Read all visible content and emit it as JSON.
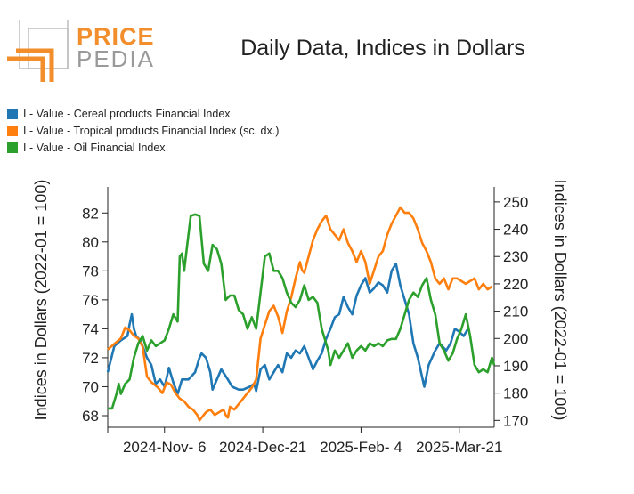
{
  "brand": {
    "line1": "PRICE",
    "line2": "PEDIA",
    "mark_color": "#f28e2b"
  },
  "chart_data": {
    "type": "line",
    "title": "Daily Data, Indices in Dollars",
    "xlabel": "",
    "ylabel": "Indices in Dollars (2022-01 = 100)",
    "y2label": "Indices in Dollars (2022-01 = 100)",
    "ylim": [
      67.2,
      83.8
    ],
    "y2lim": [
      167.5,
      255.5
    ],
    "yticks": [
      68,
      70,
      72,
      74,
      76,
      78,
      80,
      82
    ],
    "y2ticks": [
      170,
      180,
      190,
      200,
      210,
      220,
      230,
      240,
      250
    ],
    "x_tick_labels": [
      "2024-Nov- 6",
      "2024-Dec-21",
      "2025-Feb- 4",
      "2025-Mar-21"
    ],
    "x_tick_positions": [
      26,
      71,
      116,
      161
    ],
    "xlim": [
      0,
      177
    ],
    "grid": false,
    "legend": "top-left",
    "series": [
      {
        "name": "I - Value - Cereal products Financial Index",
        "axis": "left",
        "color": "#1f77b4",
        "points": [
          [
            0,
            71.0
          ],
          [
            3,
            72.8
          ],
          [
            6,
            73.2
          ],
          [
            9,
            73.5
          ],
          [
            10,
            74.3
          ],
          [
            11,
            75.0
          ],
          [
            12,
            74.0
          ],
          [
            13,
            73.5
          ],
          [
            15,
            73.2
          ],
          [
            18,
            72.0
          ],
          [
            20,
            71.5
          ],
          [
            22,
            70.2
          ],
          [
            24,
            70.5
          ],
          [
            26,
            70.0
          ],
          [
            28,
            71.3
          ],
          [
            30,
            70.3
          ],
          [
            32,
            69.5
          ],
          [
            34,
            70.5
          ],
          [
            37,
            70.5
          ],
          [
            40,
            71.0
          ],
          [
            42,
            72.0
          ],
          [
            43,
            72.3
          ],
          [
            45,
            72.0
          ],
          [
            47,
            71.0
          ],
          [
            48,
            69.8
          ],
          [
            50,
            70.5
          ],
          [
            52,
            71.2
          ],
          [
            55,
            70.5
          ],
          [
            57,
            70.0
          ],
          [
            60,
            69.8
          ],
          [
            62,
            69.8
          ],
          [
            65,
            70.0
          ],
          [
            67,
            70.2
          ],
          [
            68,
            69.7
          ],
          [
            70,
            71.2
          ],
          [
            72,
            71.5
          ],
          [
            74,
            70.5
          ],
          [
            76,
            71.0
          ],
          [
            78,
            71.5
          ],
          [
            80,
            71.0
          ],
          [
            82,
            72.3
          ],
          [
            84,
            72.0
          ],
          [
            86,
            72.5
          ],
          [
            88,
            72.3
          ],
          [
            90,
            72.8
          ],
          [
            92,
            72.0
          ],
          [
            94,
            71.2
          ],
          [
            96,
            71.8
          ],
          [
            98,
            72.3
          ],
          [
            100,
            73.3
          ],
          [
            102,
            74.0
          ],
          [
            104,
            74.8
          ],
          [
            106,
            75.0
          ],
          [
            108,
            76.2
          ],
          [
            110,
            75.5
          ],
          [
            112,
            75.0
          ],
          [
            114,
            76.3
          ],
          [
            116,
            77.0
          ],
          [
            118,
            77.5
          ],
          [
            120,
            76.5
          ],
          [
            122,
            76.8
          ],
          [
            124,
            77.2
          ],
          [
            126,
            77.0
          ],
          [
            128,
            76.5
          ],
          [
            130,
            78.0
          ],
          [
            132,
            78.5
          ],
          [
            134,
            77.0
          ],
          [
            136,
            76.0
          ],
          [
            138,
            75.0
          ],
          [
            140,
            73.0
          ],
          [
            142,
            72.0
          ],
          [
            145,
            70.0
          ],
          [
            147,
            71.5
          ],
          [
            150,
            72.5
          ],
          [
            152,
            73.0
          ],
          [
            155,
            72.5
          ],
          [
            157,
            73.0
          ],
          [
            159,
            74.0
          ],
          [
            161,
            73.8
          ],
          [
            163,
            73.5
          ],
          [
            165,
            74.0
          ]
        ]
      },
      {
        "name": "I - Value - Tropical products Financial Index (sc. dx.)",
        "axis": "right",
        "color": "#ff7f0e",
        "points": [
          [
            0,
            196
          ],
          [
            3,
            198
          ],
          [
            6,
            200
          ],
          [
            8,
            204
          ],
          [
            10,
            203
          ],
          [
            12,
            201
          ],
          [
            14,
            200
          ],
          [
            16,
            197
          ],
          [
            18,
            186
          ],
          [
            20,
            184
          ],
          [
            23,
            182
          ],
          [
            25,
            180
          ],
          [
            27,
            184
          ],
          [
            29,
            183
          ],
          [
            31,
            180
          ],
          [
            33,
            178
          ],
          [
            35,
            177
          ],
          [
            37,
            175
          ],
          [
            39,
            174
          ],
          [
            41,
            172
          ],
          [
            42,
            170
          ],
          [
            45,
            173
          ],
          [
            47,
            174
          ],
          [
            49,
            172
          ],
          [
            51,
            173
          ],
          [
            53,
            174
          ],
          [
            54,
            172
          ],
          [
            55,
            171
          ],
          [
            56,
            175
          ],
          [
            58,
            174
          ],
          [
            60,
            176
          ],
          [
            62,
            178
          ],
          [
            64,
            180
          ],
          [
            66,
            182
          ],
          [
            68,
            185
          ],
          [
            70,
            200
          ],
          [
            72,
            205
          ],
          [
            74,
            210
          ],
          [
            76,
            212
          ],
          [
            78,
            208
          ],
          [
            80,
            202
          ],
          [
            82,
            210
          ],
          [
            84,
            215
          ],
          [
            86,
            222
          ],
          [
            88,
            228
          ],
          [
            89,
            225
          ],
          [
            90,
            224
          ],
          [
            92,
            230
          ],
          [
            94,
            236
          ],
          [
            96,
            240
          ],
          [
            98,
            243
          ],
          [
            100,
            245
          ],
          [
            102,
            240
          ],
          [
            104,
            238
          ],
          [
            106,
            236
          ],
          [
            108,
            240
          ],
          [
            110,
            235
          ],
          [
            112,
            232
          ],
          [
            114,
            228
          ],
          [
            116,
            232
          ],
          [
            118,
            228
          ],
          [
            120,
            220
          ],
          [
            122,
            225
          ],
          [
            124,
            230
          ],
          [
            126,
            232
          ],
          [
            128,
            238
          ],
          [
            130,
            242
          ],
          [
            132,
            245
          ],
          [
            134,
            248
          ],
          [
            136,
            246
          ],
          [
            138,
            246
          ],
          [
            140,
            244
          ],
          [
            142,
            240
          ],
          [
            144,
            235
          ],
          [
            146,
            232
          ],
          [
            148,
            228
          ],
          [
            150,
            222
          ],
          [
            152,
            220
          ],
          [
            154,
            222
          ],
          [
            156,
            218
          ],
          [
            158,
            222
          ],
          [
            160,
            222
          ],
          [
            162,
            221
          ],
          [
            164,
            220
          ],
          [
            166,
            221
          ],
          [
            168,
            222
          ],
          [
            170,
            218
          ],
          [
            172,
            220
          ],
          [
            174,
            218
          ],
          [
            176,
            219
          ]
        ]
      },
      {
        "name": "I - Value - Oil Financial Index",
        "axis": "left",
        "color": "#2ca02c",
        "points": [
          [
            0,
            68.5
          ],
          [
            2,
            68.5
          ],
          [
            4,
            69.5
          ],
          [
            5,
            70.2
          ],
          [
            6,
            69.5
          ],
          [
            8,
            70.2
          ],
          [
            10,
            70.5
          ],
          [
            12,
            72.0
          ],
          [
            14,
            73.0
          ],
          [
            16,
            73.5
          ],
          [
            18,
            72.5
          ],
          [
            20,
            73.2
          ],
          [
            22,
            72.8
          ],
          [
            24,
            73.0
          ],
          [
            26,
            73.2
          ],
          [
            28,
            74.0
          ],
          [
            30,
            75.0
          ],
          [
            32,
            74.5
          ],
          [
            33,
            79.0
          ],
          [
            34,
            79.2
          ],
          [
            35,
            78.0
          ],
          [
            36,
            79.3
          ],
          [
            38,
            81.8
          ],
          [
            40,
            81.9
          ],
          [
            42,
            81.8
          ],
          [
            44,
            78.5
          ],
          [
            46,
            78.0
          ],
          [
            48,
            79.8
          ],
          [
            50,
            79.5
          ],
          [
            52,
            78.5
          ],
          [
            54,
            76.0
          ],
          [
            56,
            76.3
          ],
          [
            58,
            76.3
          ],
          [
            60,
            75.3
          ],
          [
            62,
            75.0
          ],
          [
            64,
            74.0
          ],
          [
            66,
            74.8
          ],
          [
            68,
            74.0
          ],
          [
            70,
            76.5
          ],
          [
            72,
            79.0
          ],
          [
            74,
            79.2
          ],
          [
            76,
            78.0
          ],
          [
            78,
            78.0
          ],
          [
            80,
            77.5
          ],
          [
            82,
            76.5
          ],
          [
            84,
            75.8
          ],
          [
            86,
            75.5
          ],
          [
            88,
            76.0
          ],
          [
            90,
            77.0
          ],
          [
            92,
            76.0
          ],
          [
            94,
            76.2
          ],
          [
            96,
            75.8
          ],
          [
            98,
            74.0
          ],
          [
            100,
            73.0
          ],
          [
            101,
            72.5
          ],
          [
            102,
            71.5
          ],
          [
            104,
            72.5
          ],
          [
            106,
            72.0
          ],
          [
            108,
            72.5
          ],
          [
            110,
            73.0
          ],
          [
            112,
            72.0
          ],
          [
            114,
            72.5
          ],
          [
            116,
            72.8
          ],
          [
            118,
            72.5
          ],
          [
            120,
            73.0
          ],
          [
            122,
            72.8
          ],
          [
            124,
            73.0
          ],
          [
            126,
            72.8
          ],
          [
            128,
            73.2
          ],
          [
            130,
            73.3
          ],
          [
            132,
            73.3
          ],
          [
            134,
            74.0
          ],
          [
            136,
            75.0
          ],
          [
            138,
            76.0
          ],
          [
            140,
            76.5
          ],
          [
            142,
            76.2
          ],
          [
            144,
            77.0
          ],
          [
            146,
            77.5
          ],
          [
            148,
            76.0
          ],
          [
            150,
            75.0
          ],
          [
            152,
            73.0
          ],
          [
            154,
            72.5
          ],
          [
            156,
            71.8
          ],
          [
            158,
            72.3
          ],
          [
            160,
            73.3
          ],
          [
            162,
            74.0
          ],
          [
            164,
            75.0
          ],
          [
            166,
            73.5
          ],
          [
            168,
            71.5
          ],
          [
            170,
            71.0
          ],
          [
            172,
            71.2
          ],
          [
            174,
            71.0
          ],
          [
            176,
            72.0
          ],
          [
            177,
            71.5
          ]
        ]
      }
    ]
  }
}
